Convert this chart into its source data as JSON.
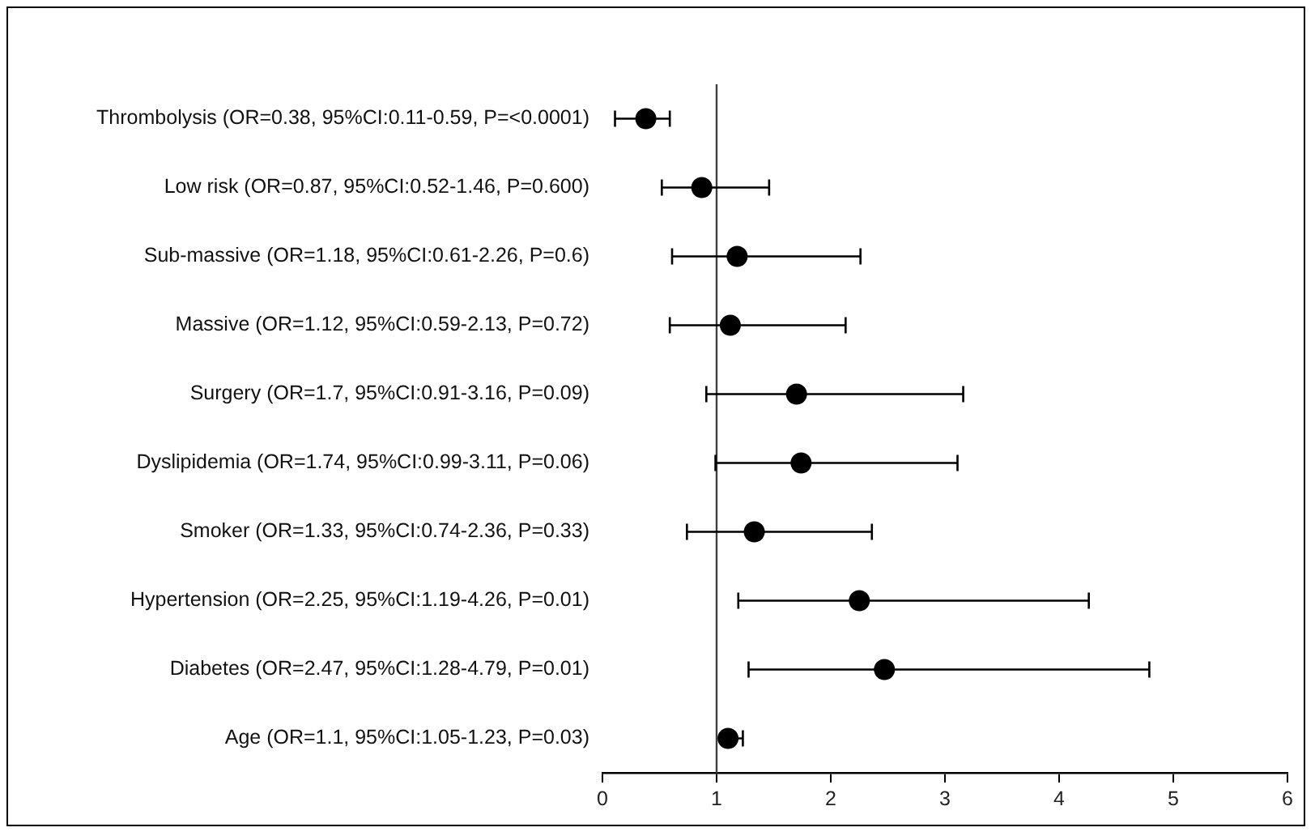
{
  "chart_data": {
    "type": "scatter",
    "orientation": "horizontal",
    "categories": [
      "Thrombolysis (OR=0.38, 95%CI:0.11-0.59, P=<0.0001)",
      "Low risk (OR=0.87, 95%CI:0.52-1.46, P=0.600)",
      "Sub-massive (OR=1.18, 95%CI:0.61-2.26, P=0.6)",
      "Massive (OR=1.12, 95%CI:0.59-2.13, P=0.72)",
      "Surgery (OR=1.7, 95%CI:0.91-3.16, P=0.09)",
      "Dyslipidemia (OR=1.74, 95%CI:0.99-3.11, P=0.06)",
      "Smoker (OR=1.33, 95%CI:0.74-2.36, P=0.33)",
      "Hypertension (OR=2.25, 95%CI:1.19-4.26, P=0.01)",
      "Diabetes (OR=2.47, 95%CI:1.28-4.79, P=0.01)",
      "Age (OR=1.1, 95%CI:1.05-1.23, P=0.03)"
    ],
    "values": [
      0.38,
      0.87,
      1.18,
      1.12,
      1.7,
      1.74,
      1.33,
      2.25,
      2.47,
      1.1
    ],
    "errors": [
      [
        0.11,
        0.59
      ],
      [
        0.52,
        1.46
      ],
      [
        0.61,
        2.26
      ],
      [
        0.59,
        2.13
      ],
      [
        0.91,
        3.16
      ],
      [
        0.99,
        3.11
      ],
      [
        0.74,
        2.36
      ],
      [
        1.19,
        4.26
      ],
      [
        1.28,
        4.79
      ],
      [
        1.05,
        1.23
      ]
    ],
    "color": "#000000",
    "marker": "circle",
    "xlim": [
      0,
      6
    ],
    "xticks": [
      0,
      1,
      2,
      3,
      4,
      5,
      6
    ],
    "ref_lines": [
      {
        "axis": "x",
        "value": 1,
        "color": "#404040"
      }
    ],
    "grid": false,
    "legend": false
  }
}
